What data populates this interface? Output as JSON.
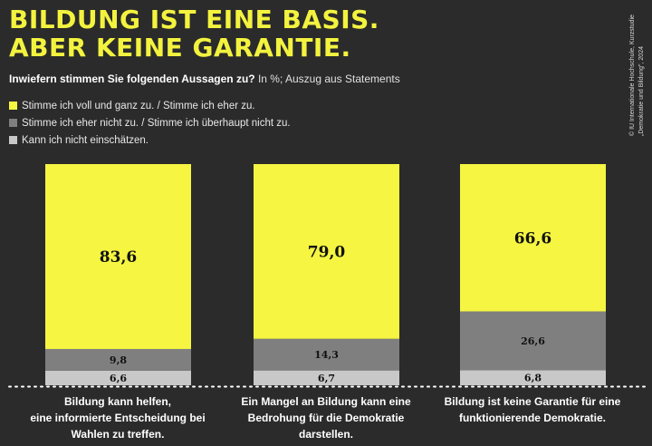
{
  "header": {
    "title": "BILDUNG IST EINE BASIS.\nABER KEINE GARANTIE.",
    "question": "Inwiefern stimmen Sie folgenden Aussagen zu?",
    "note": "In %; Auszug aus Statements",
    "source_line1": "© IU Internationale Hochschule, Kurzstudie",
    "source_line2": "„Demokratie und Bildung\", 2024"
  },
  "colors": {
    "background": "#2b2b2b",
    "agree": "#f5f542",
    "disagree": "#7f7f7f",
    "unsure": "#c8c8c8",
    "title": "#f3f33f"
  },
  "chart_data": {
    "type": "bar",
    "stacked": true,
    "categories": [
      "Bildung kann helfen, eine informierte Entscheidung bei Wahlen zu treffen.",
      "Ein Mangel an Bildung kann eine Bedrohung für die Demokratie darstellen.",
      "Bildung ist keine Garantie für eine funktionierende Demokratie."
    ],
    "series": [
      {
        "name": "Kann ich nicht einschätzen.",
        "values": [
          6.6,
          6.7,
          6.8
        ],
        "labels": [
          "6,6",
          "6,7",
          "6,8"
        ]
      },
      {
        "name": "Stimme ich eher nicht zu. / Stimme ich überhaupt nicht zu.",
        "values": [
          9.8,
          14.3,
          26.6
        ],
        "labels": [
          "9,8",
          "14,3",
          "26,6"
        ]
      },
      {
        "name": "Stimme ich voll und ganz zu. / Stimme ich eher zu.",
        "values": [
          83.6,
          79.0,
          66.6
        ],
        "labels": [
          "83,6",
          "79,0",
          "66,6"
        ]
      }
    ],
    "legend": [
      "Stimme ich voll und ganz zu. / Stimme ich eher zu.",
      "Stimme ich eher nicht zu. / Stimme ich überhaupt nicht zu.",
      "Kann ich nicht einschätzen."
    ],
    "title": "BILDUNG IST EINE BASIS. ABER KEINE GARANTIE.",
    "ylim": [
      0,
      100
    ],
    "grid": false,
    "legend_position": "top-left"
  },
  "captions": [
    "Bildung kann helfen,\neine informierte Entscheidung bei\nWahlen zu treffen.",
    "Ein Mangel an Bildung kann eine\nBedrohung für die Demokratie\ndarstellen.",
    "Bildung ist keine Garantie für eine\nfunktionierende Demokratie."
  ]
}
